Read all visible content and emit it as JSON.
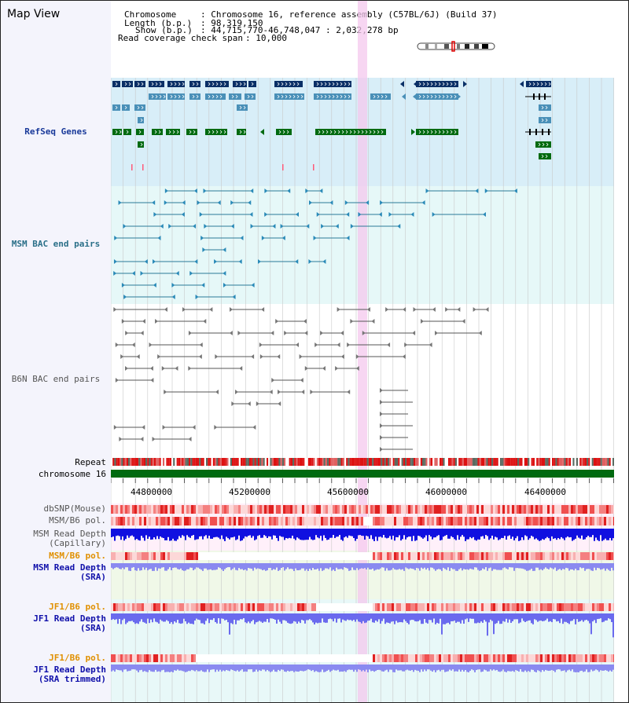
{
  "header": {
    "view_title": "Map View",
    "chromosome_key": "Chromosome",
    "chromosome_value": "Chromosome 16, reference assembly (C57BL/6J) (Build 37)",
    "length_key": "Length (b.p.)",
    "length_value": "98,319,150",
    "show_key": "Show (b.p.)",
    "show_value": "44,715,770-46,748,047 : 2,032,278 bp",
    "coverage_key": "Read coverage check span",
    "coverage_value": "10,000"
  },
  "tracks": {
    "refseq": "RefSeq Genes",
    "msm_bac": "MSM BAC end pairs",
    "b6n_bac": "B6N BAC end pairs",
    "repeat": "Repeat",
    "chromosome": "chromosome 16",
    "dbsnp": "dbSNP(Mouse)",
    "msm_b6_pol": "MSM/B6 pol.",
    "msm_read_depth_cap_1": "MSM Read Depth",
    "msm_read_depth_cap_2": "(Capillary)",
    "msm_b6_pol_sra": "MSM/B6 pol.",
    "msm_read_depth_sra_1": "MSM Read Depth",
    "msm_read_depth_sra_2": "(SRA)",
    "jf1_b6_pol": "JF1/B6 pol.",
    "jf1_read_depth_sra_1": "JF1 Read Depth",
    "jf1_read_depth_sra_2": "(SRA)",
    "jf1_b6_pol_trim": "JF1/B6 pol.",
    "jf1_read_depth_trim_1": "JF1 Read Depth",
    "jf1_read_depth_trim_2": "(SRA trimmed)"
  },
  "axis": {
    "ticks": [
      "44800000",
      "45200000",
      "45600000",
      "46000000",
      "46400000"
    ]
  },
  "colors": {
    "refseq_bg": "#d8eef8",
    "msm_bg": "#e6f8f8",
    "b6n_bg": "#ffffff",
    "gene_navy": "#0a2f66",
    "gene_mid": "#4a90b8",
    "gene_green": "#006a10",
    "highlight": "#f4c8ee",
    "chrom_green": "#006a10"
  }
}
